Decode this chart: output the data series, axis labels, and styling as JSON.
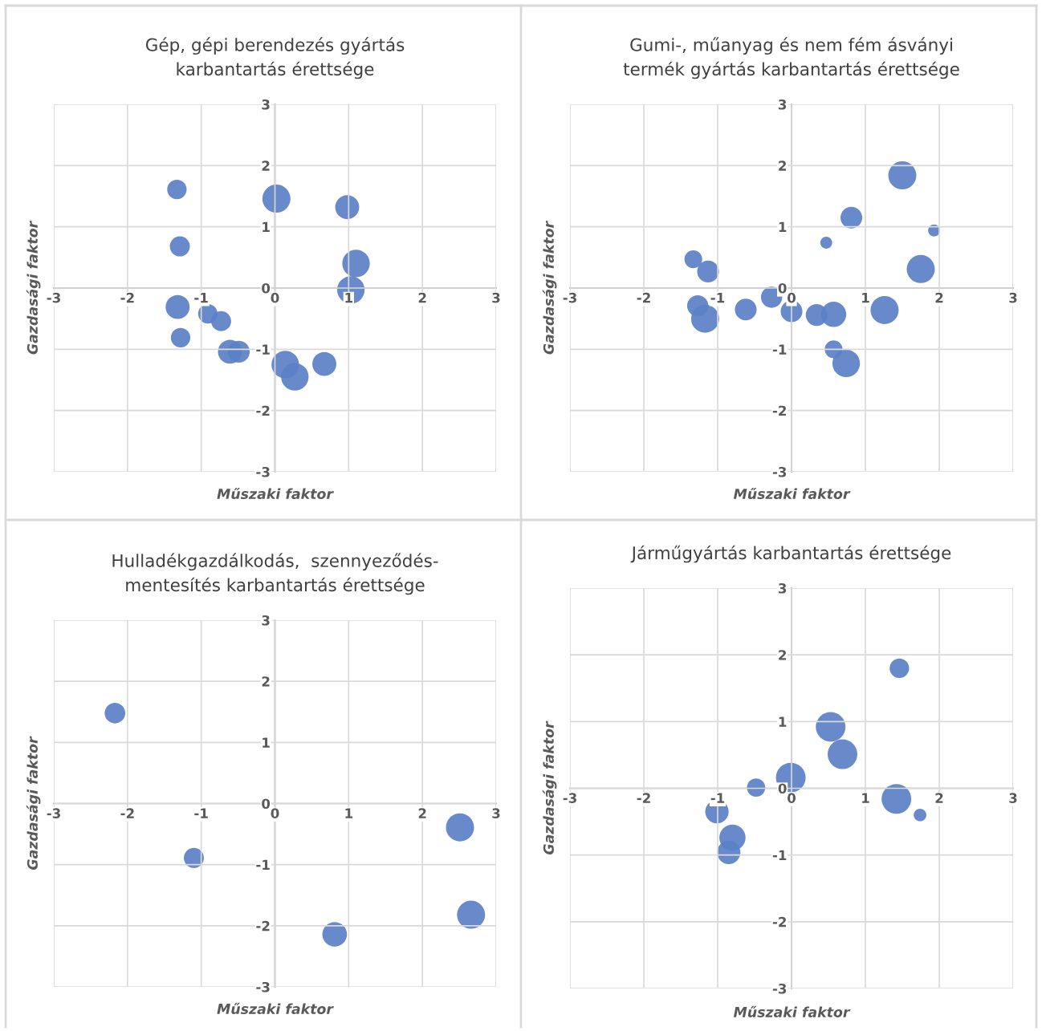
{
  "chart_data": [
    {
      "type": "bubble",
      "title": "Gép, gépi berendezés gyártás\nkarbantartás érettsége",
      "xlabel": "Műszaki faktor",
      "ylabel": "Gazdasági faktor",
      "xlim": [
        -3,
        3
      ],
      "ylim": [
        -3,
        3
      ],
      "xticks": [
        -3,
        -2,
        -1,
        0,
        1,
        2,
        3
      ],
      "yticks": [
        -3,
        -2,
        -1,
        0,
        1,
        2,
        3
      ],
      "grid": true,
      "x": [
        -1.33,
        0.02,
        0.98,
        -1.29,
        1.1,
        1.03,
        -1.32,
        -0.91,
        -0.73,
        -1.28,
        -0.61,
        -0.49,
        0.14,
        0.27,
        0.67
      ],
      "series": [
        {
          "color": "#5b80c6",
          "values": [
            1.61,
            1.46,
            1.32,
            0.68,
            0.4,
            -0.03,
            -0.31,
            -0.42,
            -0.54,
            -0.81,
            -1.04,
            -1.04,
            -1.25,
            -1.45,
            -1.24
          ],
          "sizes": [
            0.48,
            1,
            0.73,
            0.51,
            0.96,
            0.96,
            0.73,
            0.48,
            0.51,
            0.48,
            0.73,
            0.6,
            0.96,
            0.96,
            0.73
          ]
        }
      ]
    },
    {
      "type": "bubble",
      "title": "Gumi-, műanyag és nem fém ásványi\ntermék gyártás karbantartás érettsége",
      "xlabel": "Műszaki faktor",
      "ylabel": "Gazdasági faktor",
      "xlim": [
        -3,
        3
      ],
      "ylim": [
        -3,
        3
      ],
      "xticks": [
        -3,
        -2,
        -1,
        0,
        1,
        2,
        3
      ],
      "yticks": [
        -3,
        -2,
        -1,
        0,
        1,
        2,
        3
      ],
      "grid": true,
      "x": [
        1.5,
        0.81,
        1.93,
        0.47,
        -1.33,
        -1.13,
        1.75,
        -0.27,
        -1.27,
        -1.17,
        -0.62,
        0.0,
        0.34,
        0.57,
        1.26,
        0.57,
        0.74
      ],
      "series": [
        {
          "color": "#5b80c6",
          "values": [
            1.84,
            1.15,
            0.94,
            0.74,
            0.47,
            0.27,
            0.31,
            -0.15,
            -0.29,
            -0.5,
            -0.35,
            -0.38,
            -0.44,
            -0.43,
            -0.36,
            -1.0,
            -1.23
          ],
          "sizes": [
            1,
            0.6,
            0.18,
            0.18,
            0.4,
            0.6,
            1,
            0.57,
            0.57,
            1,
            0.6,
            0.6,
            0.6,
            0.81,
            1,
            0.4,
            0.96
          ]
        }
      ]
    },
    {
      "type": "bubble",
      "title": "Hulladékgazdálkodás,  szennyeződés-\nmentesítés karbantartás érettsége",
      "xlabel": "Műszaki faktor",
      "ylabel": "Gazdasági faktor",
      "xlim": [
        -3,
        3
      ],
      "ylim": [
        -3,
        3
      ],
      "xticks": [
        -3,
        -2,
        -1,
        0,
        1,
        2,
        3
      ],
      "yticks": [
        -3,
        -2,
        -1,
        0,
        1,
        2,
        3
      ],
      "grid": true,
      "x": [
        -2.17,
        -1.1,
        0.81,
        2.51,
        2.66
      ],
      "series": [
        {
          "color": "#5b80c6",
          "values": [
            1.48,
            -0.89,
            -2.14,
            -0.39,
            -1.82
          ],
          "sizes": [
            0.54,
            0.51,
            0.77,
            1,
            1
          ]
        }
      ]
    },
    {
      "type": "bubble",
      "title": "Járműgyártás karbantartás érettsége",
      "xlabel": "Műszaki faktor",
      "ylabel": "Gazdasági faktor",
      "xlim": [
        -3,
        3
      ],
      "ylim": [
        -3,
        3
      ],
      "xticks": [
        -3,
        -2,
        -1,
        0,
        1,
        2,
        3
      ],
      "yticks": [
        -3,
        -2,
        -1,
        0,
        1,
        2,
        3
      ],
      "grid": true,
      "x": [
        1.46,
        0.53,
        0.69,
        -0.01,
        -0.48,
        1.42,
        1.74,
        -1.01,
        -0.8,
        -0.85
      ],
      "series": [
        {
          "color": "#5b80c6",
          "values": [
            1.8,
            0.92,
            0.51,
            0.16,
            0.01,
            -0.16,
            -0.4,
            -0.35,
            -0.74,
            -0.96
          ],
          "sizes": [
            0.43,
            1,
            1,
            1,
            0.38,
            1,
            0.18,
            0.62,
            0.78,
            0.62
          ]
        }
      ]
    }
  ]
}
